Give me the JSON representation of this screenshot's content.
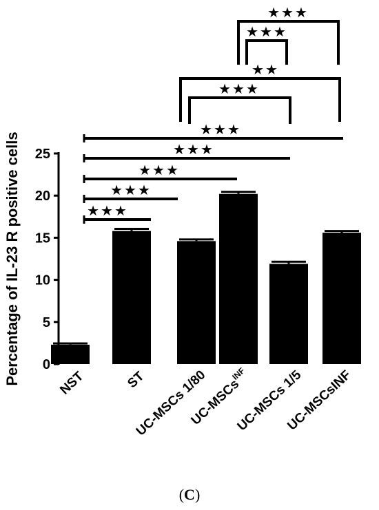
{
  "panel_label": {
    "open": "(",
    "letter": "C",
    "close": ")"
  },
  "chart_data": {
    "type": "bar",
    "ylabel": "Percentage of IL-23 R positive cells",
    "ylim": [
      0,
      25
    ],
    "yticks": [
      "0",
      "5",
      "10",
      "15",
      "20",
      "25"
    ],
    "categories": [
      {
        "text": "NST",
        "sup": ""
      },
      {
        "text": "ST",
        "sup": ""
      },
      {
        "text": "UC-MSCs 1/80",
        "sup": ""
      },
      {
        "text": "UC-MSCs",
        "sup": "INF"
      },
      {
        "text": "UC-MSCs 1/5",
        "sup": ""
      },
      {
        "text": "UC-MSCsINF",
        "sup": ""
      }
    ],
    "values": [
      2.3,
      15.8,
      14.6,
      20.2,
      11.9,
      15.6
    ],
    "errors": [
      0.15,
      0.25,
      0.2,
      0.25,
      0.25,
      0.2
    ],
    "bar_color": "#000000",
    "significance": [
      {
        "from": 0,
        "to": 1,
        "stars": "★★★"
      },
      {
        "from": 0,
        "to": 2,
        "stars": "★★★"
      },
      {
        "from": 0,
        "to": 3,
        "stars": "★★★"
      },
      {
        "from": 0,
        "to": 4,
        "stars": "★★★"
      },
      {
        "from": 0,
        "to": 5,
        "stars": "★★★"
      },
      {
        "from": 2,
        "to": 4,
        "stars": "★★★"
      },
      {
        "from": 2,
        "to": 5,
        "stars": "★★"
      },
      {
        "from": 3,
        "to": 4,
        "stars": "★★★"
      },
      {
        "from": 3,
        "to": 5,
        "stars": "★★★"
      }
    ]
  }
}
